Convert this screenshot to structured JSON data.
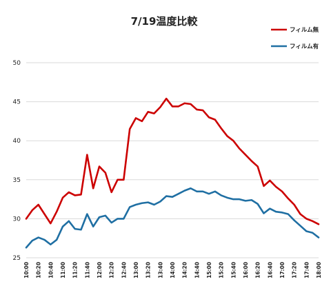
{
  "chart_data": {
    "type": "line",
    "title": "7/19温度比較",
    "xlabel": "",
    "ylabel": "",
    "ylim": [
      25,
      50
    ],
    "yticks": [
      25,
      30,
      35,
      40,
      45,
      50
    ],
    "grid": true,
    "legend_position": "top-right",
    "x": [
      "10:00",
      "10:10",
      "10:20",
      "10:30",
      "10:40",
      "10:50",
      "11:00",
      "11:10",
      "11:20",
      "11:30",
      "11:40",
      "11:50",
      "12:00",
      "12:10",
      "12:20",
      "12:30",
      "12:40",
      "12:50",
      "13:00",
      "13:10",
      "13:20",
      "13:30",
      "13:40",
      "13:50",
      "14:00",
      "14:10",
      "14:20",
      "14:30",
      "14:40",
      "14:50",
      "15:00",
      "15:10",
      "15:20",
      "15:30",
      "15:40",
      "15:50",
      "16:00",
      "16:10",
      "16:20",
      "16:30",
      "16:40",
      "16:50",
      "17:00",
      "17:10",
      "17:20",
      "17:30",
      "17:40",
      "17:50",
      "18:00"
    ],
    "xtick_labels": [
      "10:00",
      "10:20",
      "10:40",
      "11:00",
      "11:20",
      "11:40",
      "12:00",
      "12:20",
      "12:40",
      "13:00",
      "13:20",
      "13:40",
      "14:00",
      "14:20",
      "14:40",
      "15:00",
      "15:20",
      "15:40",
      "16:00",
      "16:20",
      "16:40",
      "17:00",
      "17:20",
      "17:40",
      "18:00"
    ],
    "series": [
      {
        "name": "フィルム無",
        "color": "#cc0000",
        "values": [
          30.0,
          31.1,
          31.8,
          30.6,
          29.4,
          30.9,
          32.7,
          33.4,
          33.0,
          33.1,
          38.2,
          33.9,
          36.7,
          35.9,
          33.4,
          35.0,
          35.0,
          41.5,
          42.9,
          42.5,
          43.7,
          43.5,
          44.3,
          45.4,
          44.4,
          44.4,
          44.8,
          44.7,
          44.0,
          43.9,
          43.0,
          42.7,
          41.6,
          40.6,
          40.0,
          39.0,
          38.2,
          37.4,
          36.7,
          34.2,
          34.9,
          34.1,
          33.5,
          32.6,
          31.8,
          30.6,
          30.0,
          29.7,
          29.3
        ]
      },
      {
        "name": "フィルム有",
        "color": "#1f6fa3",
        "values": [
          26.3,
          27.2,
          27.6,
          27.3,
          26.7,
          27.3,
          29.0,
          29.7,
          28.7,
          28.6,
          30.6,
          29.0,
          30.2,
          30.4,
          29.5,
          30.0,
          30.0,
          31.5,
          31.8,
          32.0,
          32.1,
          31.8,
          32.2,
          32.9,
          32.8,
          33.2,
          33.6,
          33.9,
          33.5,
          33.5,
          33.2,
          33.5,
          33.0,
          32.7,
          32.5,
          32.5,
          32.3,
          32.4,
          31.9,
          30.7,
          31.3,
          30.9,
          30.8,
          30.6,
          29.8,
          29.1,
          28.4,
          28.2,
          27.6
        ]
      }
    ]
  }
}
